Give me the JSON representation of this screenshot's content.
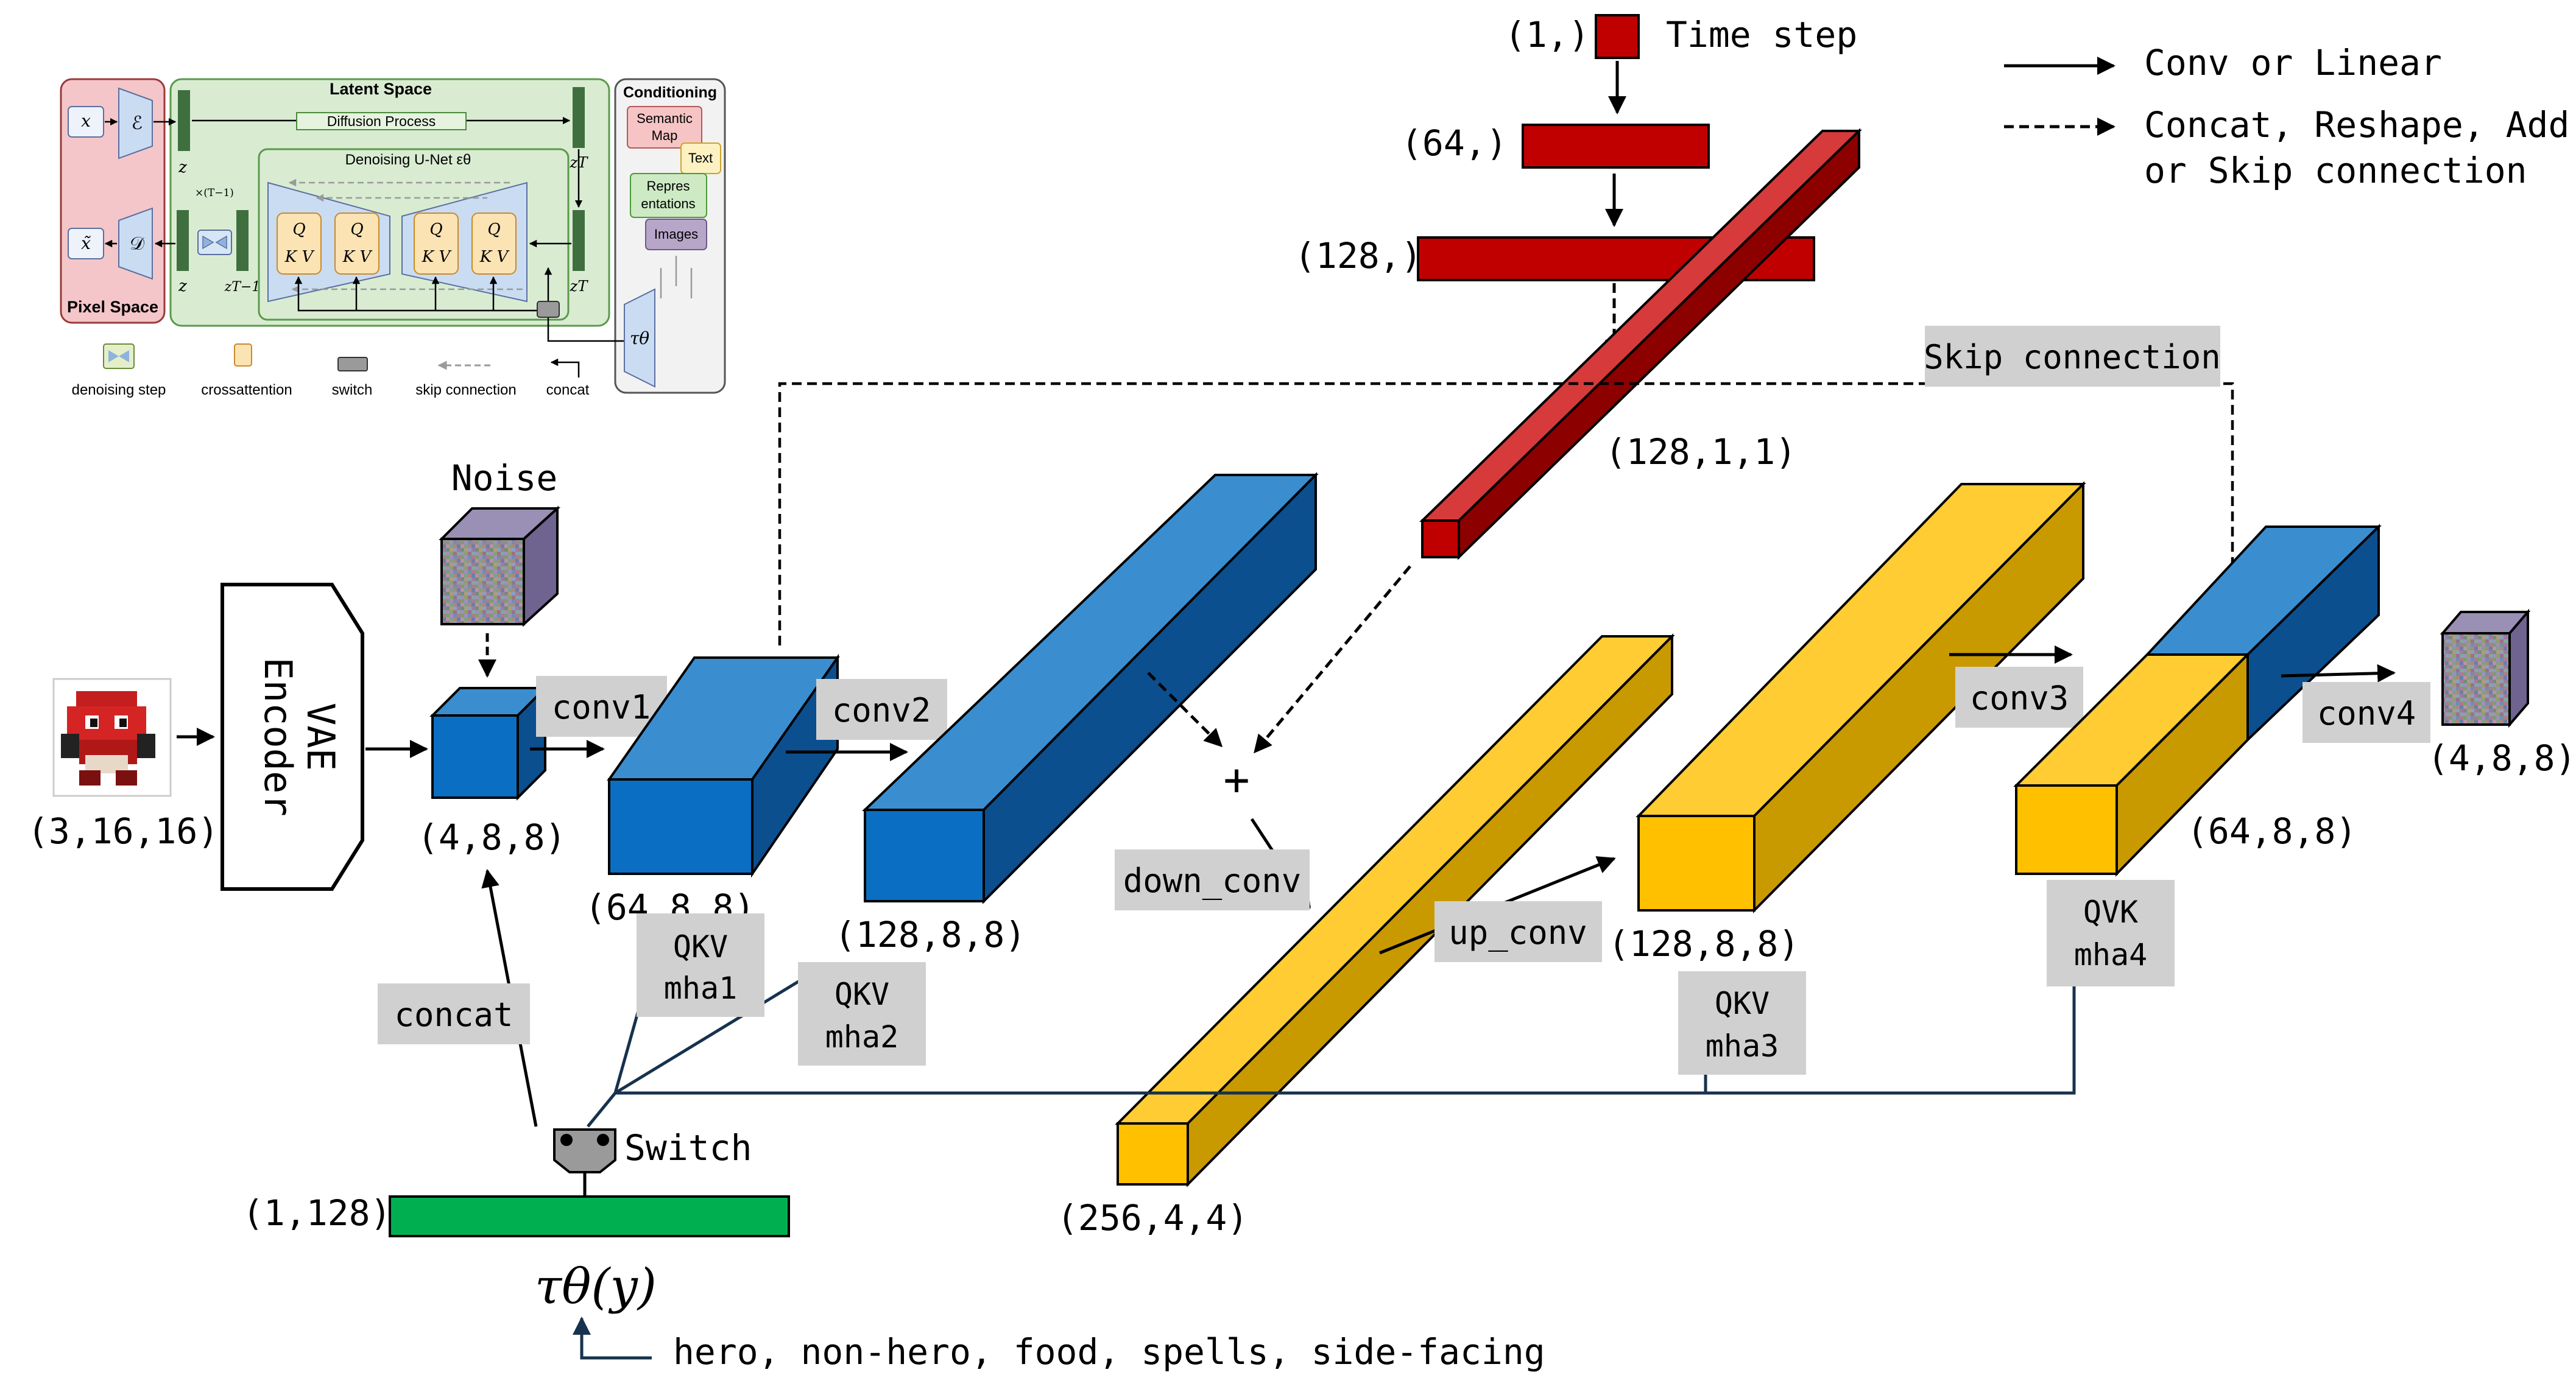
{
  "legend": {
    "solid_label": "Conv or Linear",
    "dashed_label_line1": "Concat, Reshape, Add",
    "dashed_label_line2": "or Skip connection"
  },
  "time_embedding": {
    "timestep_shape": "(1,)",
    "timestep_label": "Time step",
    "linear1_shape": "(64,)",
    "linear2_shape": "(128,)",
    "reshaped_shape": "(128,1,1)"
  },
  "skip_connection_label": "Skip connection",
  "noise_label": "Noise",
  "input_image_shape": "(3,16,16)",
  "encoder_label_line1": "VAE",
  "encoder_label_line2": "Encoder",
  "latent_shape": "(4,8,8)",
  "layers": {
    "conv1": "conv1",
    "conv2": "conv2",
    "conv3": "conv3",
    "conv4": "conv4",
    "down_conv": "down_conv",
    "up_conv": "up_conv",
    "plus": "+"
  },
  "blocks": {
    "b1_shape": "(64,8,8)",
    "b2_shape": "(128,8,8)",
    "bottleneck_shape": "(256,4,4)",
    "up_shape": "(128,8,8)",
    "out_block_shape": "(64,8,8)",
    "output_shape": "(4,8,8)"
  },
  "attention": {
    "mha1_line1": "QKV",
    "mha1_line2": "mha1",
    "mha2_line1": "QKV",
    "mha2_line2": "mha2",
    "mha3_line1": "QKV",
    "mha3_line2": "mha3",
    "mha4_line1": "QVK",
    "mha4_line2": "mha4"
  },
  "concat_label": "concat",
  "switch_label": "Switch",
  "cond_vector_shape": "(1,128)",
  "tau_theta": "τθ(y)",
  "cond_classes": "hero, non-hero, food, spells, side-facing",
  "ldm_inset": {
    "latent_space": "Latent Space",
    "diffusion_process": "Diffusion Process",
    "denoising_unet": "Denoising U-Net εθ",
    "pixel_space": "Pixel Space",
    "conditioning": "Conditioning",
    "semantic_map_line1": "Semantic",
    "semantic_map_line2": "Map",
    "text": "Text",
    "representations_line1": "Repres",
    "representations_line2": "entations",
    "images": "Images",
    "x": "x",
    "x_tilde": "x̃",
    "encoder_sym": "ℰ",
    "decoder_sym": "𝒟",
    "z": "z",
    "z_T": "zT",
    "z_T_minus_1": "zT−1",
    "times_T_minus_1": "×(T−1)",
    "tau_sym": "τθ",
    "qkv_q": "Q",
    "qkv_kv": "K V",
    "legend_denoising": "denoising step",
    "legend_crossattention": "crossattention",
    "legend_switch": "switch",
    "legend_skip": "skip connection",
    "legend_concat": "concat"
  },
  "colors": {
    "blue_front": "#0a6fc2",
    "blue_top": "#3a8ed0",
    "blue_side": "#0b4f8f",
    "yellow_front": "#ffc000",
    "yellow_top": "#ffcc33",
    "yellow_side": "#c99a00",
    "red_front": "#c00000",
    "red_top": "#d63a3a",
    "red_side": "#8c0000",
    "green_bar": "#00b050",
    "label_box": "#d0d0d0",
    "line_dark": "#17324d"
  }
}
